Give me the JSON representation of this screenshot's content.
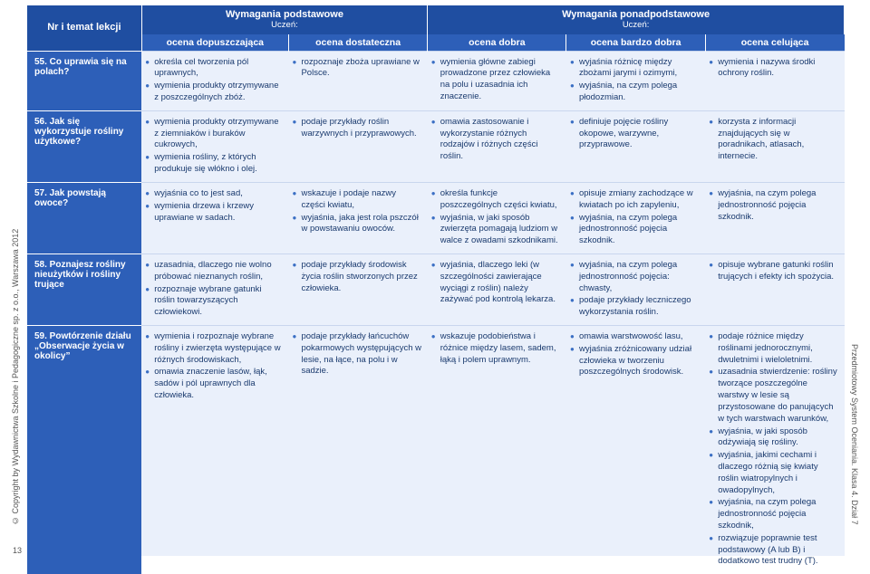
{
  "copyright": "© Copyright by Wydawnictwa Szkolne i Pedagogiczne sp. z o.o., Warszawa 2012",
  "pageNum": "13",
  "footer": "Przedmiotowy System Oceniania. Klasa 4. Dział 7",
  "headers": {
    "topic": "Nr i temat lekcji",
    "basic": "Wymagania podstawowe",
    "advanced": "Wymagania ponadpodstawowe",
    "student": "Uczeń:",
    "c1": "ocena dopuszczająca",
    "c2": "ocena dostateczna",
    "c3": "ocena dobra",
    "c4": "ocena bardzo dobra",
    "c5": "ocena celująca"
  },
  "rows": [
    {
      "topic": "55. Co uprawia się na polach?",
      "c1": [
        "określa cel tworzenia pól uprawnych,",
        "wymienia produkty otrzymywane z poszczególnych zbóż."
      ],
      "c2": [
        "rozpoznaje zboża uprawiane w Polsce."
      ],
      "c3": [
        "wymienia główne zabiegi prowadzone przez człowieka na polu i uzasadnia ich znaczenie."
      ],
      "c4": [
        "wyjaśnia różnicę między zbożami jarymi i ozimymi,",
        "wyjaśnia, na czym polega płodozmian."
      ],
      "c5": [
        "wymienia i nazywa środki ochrony roślin."
      ]
    },
    {
      "topic": "56. Jak się wykorzystuje rośliny użytkowe?",
      "c1": [
        "wymienia produkty otrzymywane z ziemniaków i buraków cukrowych,",
        "wymienia rośliny, z których produkuje się włókno i olej."
      ],
      "c2": [
        "podaje przykłady roślin warzywnych i przyprawowych."
      ],
      "c3": [
        "omawia zastosowanie i wykorzystanie różnych rodzajów i różnych części roślin."
      ],
      "c4": [
        "definiuje pojęcie rośliny okopowe, warzywne, przyprawowe."
      ],
      "c5": [
        "korzysta z informacji znajdujących się w poradnikach, atlasach, internecie."
      ]
    },
    {
      "topic": "57. Jak powstają owoce?",
      "c1": [
        "wyjaśnia co to jest sad,",
        "wymienia drzewa i krzewy uprawiane w sadach."
      ],
      "c2": [
        "wskazuje i podaje nazwy części kwiatu,",
        "wyjaśnia, jaka jest rola pszczół w powstawaniu owoców."
      ],
      "c3": [
        "określa funkcje poszczególnych części kwiatu,",
        "wyjaśnia, w jaki sposób zwierzęta pomagają ludziom w walce z owadami szkodnikami."
      ],
      "c4": [
        "opisuje zmiany zachodzące w kwiatach po ich zapyleniu,",
        "wyjaśnia, na czym polega jednostronność pojęcia szkodnik."
      ],
      "c5": [
        "wyjaśnia, na czym polega jednostronność pojęcia szkodnik."
      ]
    },
    {
      "topic": "58. Poznajesz rośliny nieużytków i rośliny trujące",
      "c1": [
        "uzasadnia, dlaczego nie wolno próbować nieznanych roślin,",
        "rozpoznaje wybrane gatunki roślin towarzyszących człowiekowi."
      ],
      "c2": [
        "podaje przykłady środowisk życia roślin stworzonych przez człowieka."
      ],
      "c3": [
        "wyjaśnia, dlaczego leki (w szczególności zawierające wyciągi z roślin) należy zażywać pod kontrolą lekarza."
      ],
      "c4": [
        "wyjaśnia, na czym polega jednostronność pojęcia: chwasty,",
        "podaje przykłady leczniczego wykorzystania roślin."
      ],
      "c5": [
        "opisuje wybrane gatunki roślin trujących i efekty ich spożycia."
      ]
    },
    {
      "topic": "59. Powtórzenie działu „Obserwacje życia w okolicy”",
      "c1": [
        "wymienia i rozpoznaje wybrane rośliny i zwierzęta występujące w różnych środowiskach,",
        "omawia znaczenie lasów, łąk, sadów i pól uprawnych dla człowieka."
      ],
      "c2": [
        "podaje przykłady łańcuchów pokarmowych występujących w lesie, na łące, na polu i w sadzie."
      ],
      "c3": [
        "wskazuje podobieństwa i różnice między lasem, sadem, łąką i polem uprawnym."
      ],
      "c4": [
        "omawia warstwowość lasu,",
        "wyjaśnia zróżnicowany udział człowieka w tworzeniu poszczególnych środowisk."
      ],
      "c5": [
        "podaje różnice między roślinami jednorocznymi, dwuletnimi i wieloletnimi.",
        "uzasadnia stwierdzenie: rośliny tworzące poszczególne warstwy w lesie są przystosowane do panujących w tych warstwach warunków,",
        "wyjaśnia, w jaki sposób odżywiają się rośliny.",
        "wyjaśnia, jakimi cechami i dlaczego różnią się kwiaty roślin wiatropylnych i owadopylnych,",
        "wyjaśnia, na czym polega jednostronność pojęcia szkodnik,",
        "rozwiązuje poprawnie test podstawowy (A lub B) i dodatkowo test trudny (T)."
      ]
    }
  ]
}
